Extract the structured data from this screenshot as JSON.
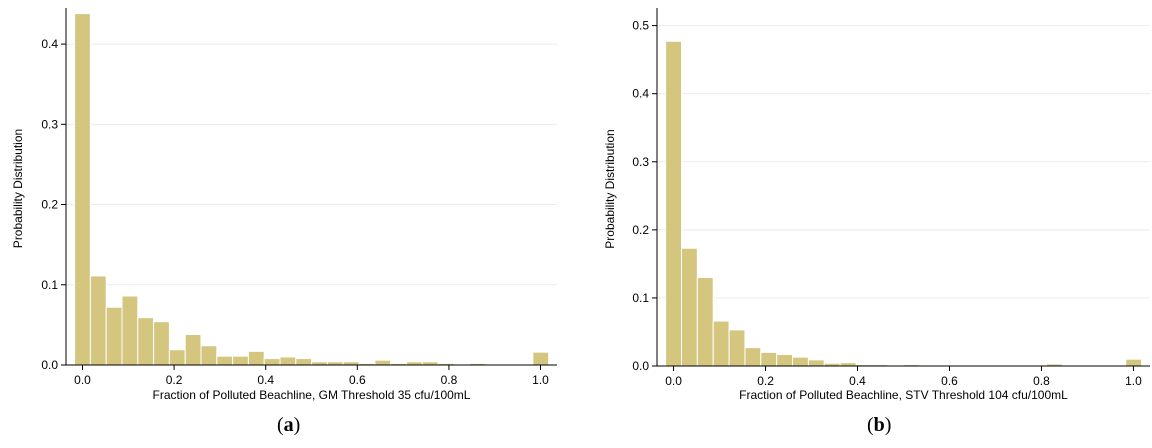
{
  "figure": {
    "panels": [
      {
        "caption_open": "(",
        "caption_letter": "a",
        "caption_close": ")",
        "chart_data": {
          "type": "bar",
          "title": "",
          "xlabel": "Fraction of Polluted Beachline, GM Threshold 35 cfu/100mL",
          "ylabel": "Probability Distribution",
          "xlim": [
            -0.036,
            1.036
          ],
          "ylim": [
            0,
            0.44
          ],
          "xticks": [
            0.0,
            0.2,
            0.4,
            0.6,
            0.8,
            1.0
          ],
          "xtick_labels": [
            "0.0",
            "0.2",
            "0.4",
            "0.6",
            "0.8",
            "1.0"
          ],
          "yticks": [
            0.0,
            0.1,
            0.2,
            0.3,
            0.4
          ],
          "ytick_labels": [
            "0.0",
            "0.1",
            "0.2",
            "0.3",
            "0.4"
          ],
          "bin_width": 0.0345,
          "bin_start": -0.01725,
          "values": [
            0.438,
            0.111,
            0.072,
            0.086,
            0.059,
            0.054,
            0.019,
            0.038,
            0.024,
            0.011,
            0.011,
            0.017,
            0.008,
            0.01,
            0.008,
            0.004,
            0.004,
            0.004,
            0.002,
            0.006,
            0.002,
            0.004,
            0.004,
            0.002,
            0.0,
            0.002,
            0.0,
            0.0,
            0.0,
            0.016
          ],
          "bar_color": "#d4c67e",
          "grid": true
        }
      },
      {
        "caption_open": "(",
        "caption_letter": "b",
        "caption_close": ")",
        "chart_data": {
          "type": "bar",
          "title": "",
          "xlabel": "Fraction of Polluted Beachline, STV Threshold 104 cfu/100mL",
          "ylabel": "Probability Distribution",
          "xlim": [
            -0.036,
            1.036
          ],
          "ylim": [
            0,
            0.52
          ],
          "xticks": [
            0.0,
            0.2,
            0.4,
            0.6,
            0.8,
            1.0
          ],
          "xtick_labels": [
            "0.0",
            "0.2",
            "0.4",
            "0.6",
            "0.8",
            "1.0"
          ],
          "yticks": [
            0.0,
            0.1,
            0.2,
            0.3,
            0.4,
            0.5
          ],
          "ytick_labels": [
            "0.0",
            "0.1",
            "0.2",
            "0.3",
            "0.4",
            "0.5"
          ],
          "bin_width": 0.0345,
          "bin_start": -0.01725,
          "values": [
            0.477,
            0.173,
            0.13,
            0.066,
            0.053,
            0.027,
            0.02,
            0.017,
            0.013,
            0.009,
            0.004,
            0.005,
            0.002,
            0.002,
            0.001,
            0.002,
            0.001,
            0.001,
            0.001,
            0.001,
            0.0,
            0.0,
            0.001,
            0.0,
            0.003,
            0.0,
            0.0,
            0.0,
            0.0,
            0.01
          ],
          "bar_color": "#d4c67e",
          "grid": true
        }
      }
    ]
  }
}
